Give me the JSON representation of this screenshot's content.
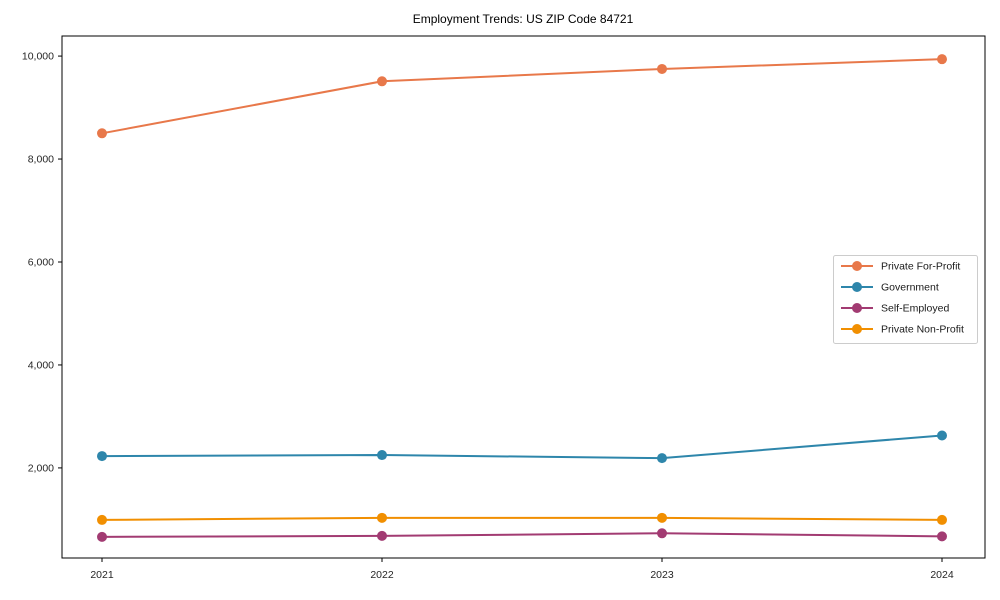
{
  "chart_data": {
    "type": "line",
    "title": "Employment Trends: US ZIP Code 84721",
    "xlabel": "",
    "ylabel": "",
    "x": [
      "2021",
      "2022",
      "2023",
      "2024"
    ],
    "series": [
      {
        "name": "Private For-Profit",
        "color": "#E8784A",
        "values": [
          8500,
          9510,
          9750,
          9940
        ]
      },
      {
        "name": "Government",
        "color": "#2E86AB",
        "values": [
          2230,
          2250,
          2190,
          2630
        ]
      },
      {
        "name": "Self-Employed",
        "color": "#A23B72",
        "values": [
          660,
          680,
          730,
          670
        ]
      },
      {
        "name": "Private Non-Profit",
        "color": "#F18F01",
        "values": [
          990,
          1030,
          1030,
          990
        ]
      }
    ],
    "y_ticks": [
      {
        "value": 2000,
        "label": "2,000"
      },
      {
        "value": 4000,
        "label": "4,000"
      },
      {
        "value": 6000,
        "label": "6,000"
      },
      {
        "value": 8000,
        "label": "8,000"
      },
      {
        "value": 10000,
        "label": "10,000"
      }
    ],
    "ylim": [
      250,
      10390
    ],
    "grid": false,
    "marker": "circle",
    "legend_position": "center right",
    "legend_border_color": "#cccccc",
    "axis_color": "#000000",
    "background_color": "#ffffff"
  }
}
